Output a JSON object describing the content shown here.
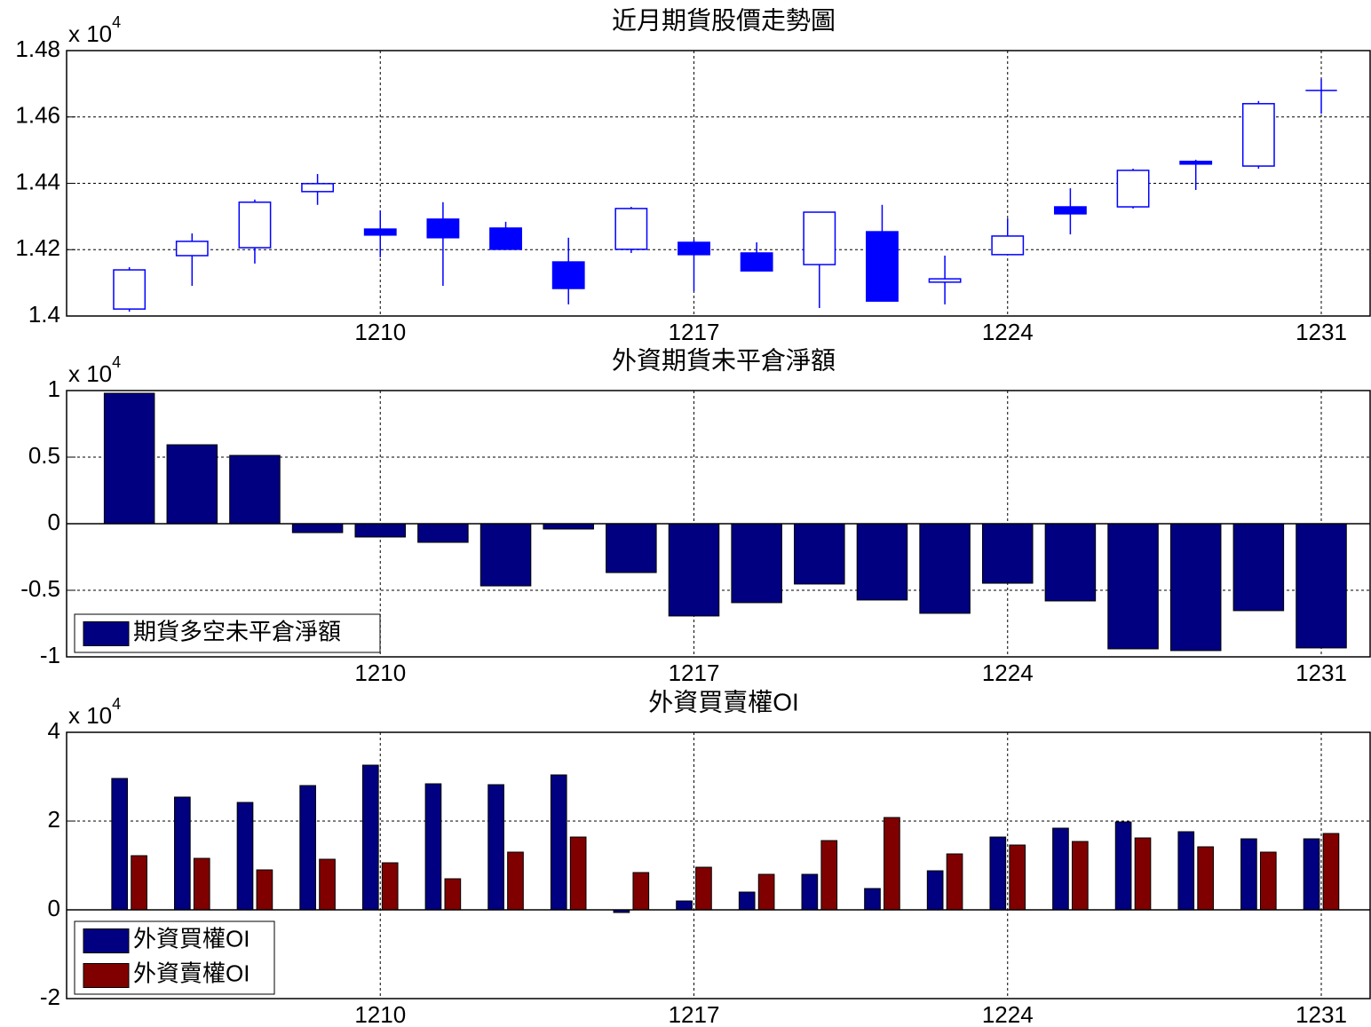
{
  "chart_data": [
    {
      "type": "candlestick",
      "title": "近月期貨股價走勢圖",
      "y_multiplier": "x 10",
      "y_multiplier_exp": "4",
      "categories": [
        null,
        null,
        null,
        null,
        "1210",
        null,
        null,
        null,
        null,
        "1217",
        null,
        null,
        null,
        null,
        "1224",
        null,
        null,
        null,
        null,
        "1231"
      ],
      "open": [
        1.4021,
        1.4182,
        1.4206,
        1.4375,
        1.4262,
        1.4292,
        1.4265,
        1.4163,
        1.4201,
        1.4222,
        1.419,
        1.4155,
        1.4254,
        1.4102,
        1.4185,
        1.4329,
        1.4329,
        1.4466,
        1.4452,
        1.468
      ],
      "high": [
        1.4147,
        1.4249,
        1.4351,
        1.4428,
        1.4318,
        1.4343,
        1.4284,
        1.4236,
        1.4329,
        1.423,
        1.4222,
        1.4313,
        1.4335,
        1.4182,
        1.4294,
        1.4385,
        1.4444,
        1.4471,
        1.4648,
        1.4715
      ],
      "low": [
        1.4013,
        1.4091,
        1.4158,
        1.4335,
        1.4177,
        1.4091,
        1.4201,
        1.4035,
        1.419,
        1.4075,
        1.4136,
        1.4024,
        1.4045,
        1.4035,
        1.4185,
        1.4246,
        1.4324,
        1.438,
        1.4444,
        1.461
      ],
      "close": [
        1.4139,
        1.4225,
        1.4343,
        1.4399,
        1.4244,
        1.4236,
        1.4201,
        1.4083,
        1.4324,
        1.4185,
        1.4136,
        1.4313,
        1.4045,
        1.4112,
        1.4241,
        1.4308,
        1.4439,
        1.4458,
        1.464,
        1.468
      ],
      "color": "#0000ff",
      "ylim": [
        1.4,
        1.48
      ],
      "yticks": [
        1.4,
        1.42,
        1.44,
        1.46,
        1.48
      ],
      "grid": true
    },
    {
      "type": "bar",
      "title": "外資期貨未平倉淨額",
      "y_multiplier": "x 10",
      "y_multiplier_exp": "4",
      "categories": [
        null,
        null,
        null,
        null,
        "1210",
        null,
        null,
        null,
        null,
        "1217",
        null,
        null,
        null,
        null,
        "1224",
        null,
        null,
        null,
        null,
        "1231"
      ],
      "series": [
        {
          "name": "期貨多空未平倉淨額",
          "color": "#000080",
          "values": [
            0.98,
            0.593,
            0.513,
            -0.067,
            -0.1,
            -0.14,
            -0.467,
            -0.04,
            -0.367,
            -0.693,
            -0.593,
            -0.453,
            -0.573,
            -0.673,
            -0.447,
            -0.58,
            -0.94,
            -0.953,
            -0.653,
            -0.933
          ]
        }
      ],
      "ylim": [
        -1,
        1
      ],
      "yticks": [
        -1,
        -0.5,
        0,
        0.5,
        1
      ],
      "grid": true,
      "legend": "lower left"
    },
    {
      "type": "bar",
      "title": "外資買賣權OI",
      "y_multiplier": "x 10",
      "y_multiplier_exp": "4",
      "categories": [
        null,
        null,
        null,
        null,
        "1210",
        null,
        null,
        null,
        null,
        "1217",
        null,
        null,
        null,
        null,
        "1224",
        null,
        null,
        null,
        null,
        "1231"
      ],
      "series": [
        {
          "name": "外資買權OI",
          "color": "#000080",
          "values": [
            2.96,
            2.54,
            2.42,
            2.8,
            3.26,
            2.84,
            2.82,
            3.04,
            -0.06,
            0.2,
            0.4,
            0.8,
            0.48,
            0.88,
            1.64,
            1.84,
            1.98,
            1.76,
            1.6,
            1.6
          ]
        },
        {
          "name": "外資賣權OI",
          "color": "#800000",
          "values": [
            1.22,
            1.16,
            0.9,
            1.14,
            1.06,
            0.7,
            1.3,
            1.64,
            0.84,
            0.96,
            0.8,
            1.56,
            2.08,
            1.26,
            1.46,
            1.54,
            1.62,
            1.42,
            1.3,
            1.72
          ]
        }
      ],
      "ylim": [
        -2,
        4
      ],
      "yticks": [
        -2,
        0,
        2,
        4
      ],
      "grid": true,
      "legend": "lower left"
    }
  ]
}
